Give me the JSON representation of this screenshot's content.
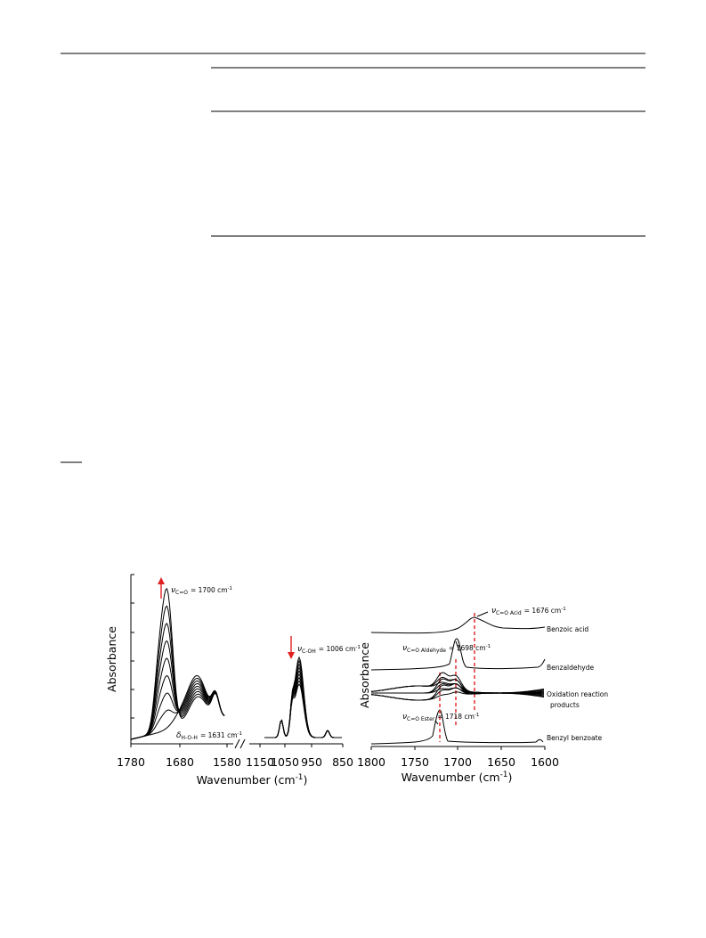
{
  "figure": {
    "left_panel": {
      "y_label": "Absorbance",
      "x_label": {
        "text": "Wavenumber (cm",
        "sup": "-1",
        "close": ")"
      },
      "x_ticks": [
        "1780",
        "1680",
        "1580",
        "1150",
        "1050",
        "950",
        "850"
      ],
      "annotations": [
        {
          "symbol": "ν",
          "sub": "C=O",
          "value": "= 1700 cm",
          "sup": "-1"
        },
        {
          "symbol": "ν",
          "sub": "C-OH",
          "value": "= 1006 cm",
          "sup": "-1"
        },
        {
          "symbol": "δ",
          "sub": "H-O-H",
          "value": "= 1631 cm",
          "sup": "-1"
        }
      ]
    },
    "right_panel": {
      "y_label": "Absorbance",
      "x_label": {
        "text": "Wavenumber (cm",
        "sup": "-1",
        "close": ")"
      },
      "x_ticks": [
        "1800",
        "1750",
        "1700",
        "1650",
        "1600"
      ],
      "annotations": [
        {
          "symbol": "ν",
          "sub": "C=O Acid",
          "value": "= 1676 cm",
          "sup": "-1"
        },
        {
          "symbol": "ν",
          "sub": "C=O Aldehyde",
          "value": "= 1698 cm",
          "sup": "-1"
        },
        {
          "symbol": "ν",
          "sub": "C=O Ester",
          "value": "= 1718 cm",
          "sup": "-1"
        }
      ],
      "spectrum_labels": [
        "Benzoic acid",
        "Benzaldehyde",
        "Oxidation reaction",
        "products",
        "Benzyl benzoate"
      ]
    }
  }
}
